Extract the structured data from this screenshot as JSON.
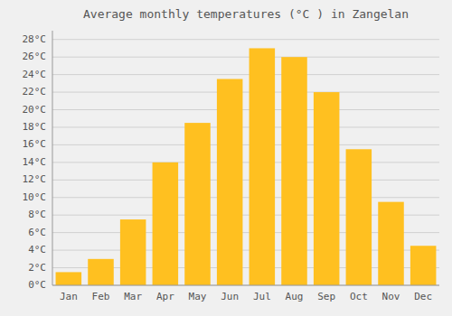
{
  "chart_data": {
    "type": "bar",
    "title": "Average monthly temperatures (°C ) in Zangelan",
    "categories": [
      "Jan",
      "Feb",
      "Mar",
      "Apr",
      "May",
      "Jun",
      "Jul",
      "Aug",
      "Sep",
      "Oct",
      "Nov",
      "Dec"
    ],
    "values": [
      1.5,
      3.0,
      7.5,
      14.0,
      18.5,
      23.5,
      27.0,
      26.0,
      22.0,
      15.5,
      9.5,
      4.5
    ],
    "color": "#FFC020",
    "ylim": [
      0,
      29
    ],
    "yticks": [
      {
        "value": 0,
        "label": "0°C"
      },
      {
        "value": 2,
        "label": "2°C"
      },
      {
        "value": 4,
        "label": "4°C"
      },
      {
        "value": 6,
        "label": "6°C"
      },
      {
        "value": 8,
        "label": "8°C"
      },
      {
        "value": 10,
        "label": "10°C"
      },
      {
        "value": 12,
        "label": "12°C"
      },
      {
        "value": 14,
        "label": "14°C"
      },
      {
        "value": 16,
        "label": "16°C"
      },
      {
        "value": 18,
        "label": "18°C"
      },
      {
        "value": 20,
        "label": "20°C"
      },
      {
        "value": 22,
        "label": "22°C"
      },
      {
        "value": 24,
        "label": "24°C"
      },
      {
        "value": 26,
        "label": "26°C"
      },
      {
        "value": 28,
        "label": "28°C"
      }
    ],
    "grid": true
  }
}
